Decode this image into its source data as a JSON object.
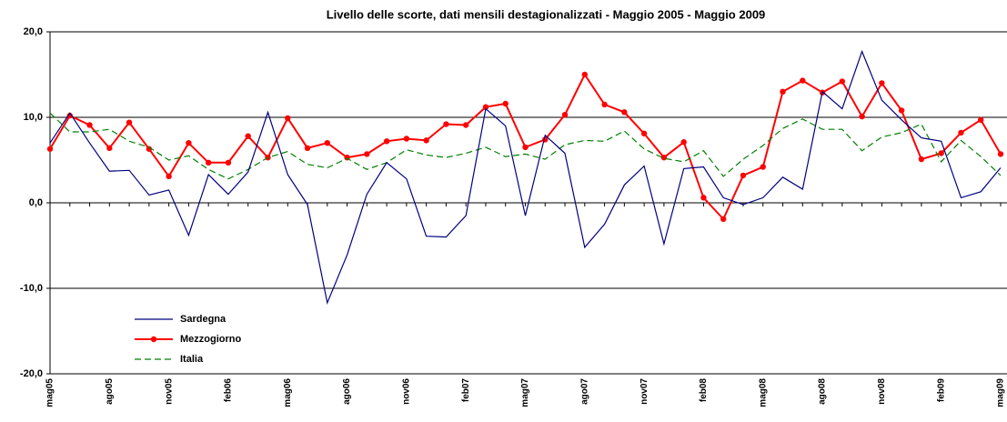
{
  "chart_data": {
    "type": "line",
    "title": "Livello delle scorte, dati mensili destagionalizzati - Maggio 2005 - Maggio 2009",
    "categories": [
      "mag05",
      null,
      null,
      "ago05",
      null,
      null,
      "nov05",
      null,
      null,
      "feb06",
      null,
      null,
      "mag06",
      null,
      null,
      "ago06",
      null,
      null,
      "nov06",
      null,
      null,
      "feb07",
      null,
      null,
      "mag07",
      null,
      null,
      "ago07",
      null,
      null,
      "nov07",
      null,
      null,
      "feb08",
      null,
      null,
      "mag08",
      null,
      null,
      "ago08",
      null,
      null,
      "nov08",
      null,
      null,
      "feb09",
      null,
      null,
      "mag09"
    ],
    "series": [
      {
        "name": "Sardegna",
        "color": "#000080",
        "values": [
          7.0,
          10.5,
          7.0,
          3.7,
          3.8,
          0.9,
          1.5,
          -3.8,
          3.3,
          1.0,
          3.6,
          10.6,
          3.3,
          -0.2,
          -11.7,
          -6.1,
          1.0,
          4.7,
          2.8,
          -3.9,
          -4.0,
          -1.5,
          11.0,
          9.0,
          -1.5,
          7.9,
          5.8,
          -5.2,
          -2.5,
          2.1,
          4.3,
          -4.8,
          4.0,
          4.2,
          0.6,
          -0.2,
          0.6,
          3.0,
          1.6,
          13.0,
          11.0,
          17.7,
          12.0,
          9.7,
          7.6,
          7.2,
          0.6,
          1.3,
          4.1
        ]
      },
      {
        "name": "Mezzogiorno",
        "color": "#ff0000",
        "marker": "circle",
        "values": [
          6.3,
          10.2,
          9.1,
          6.4,
          9.4,
          6.3,
          3.1,
          7.0,
          4.7,
          4.7,
          7.8,
          5.3,
          9.9,
          6.4,
          7.0,
          5.3,
          5.7,
          7.2,
          7.5,
          7.3,
          9.2,
          9.1,
          11.2,
          11.6,
          6.5,
          7.4,
          10.3,
          15.0,
          11.5,
          10.6,
          8.1,
          5.3,
          7.1,
          0.6,
          -1.9,
          3.2,
          4.2,
          13.0,
          14.3,
          12.9,
          14.2,
          10.1,
          14.0,
          10.8,
          5.1,
          5.8,
          8.2,
          9.7,
          5.7
        ]
      },
      {
        "name": "Italia",
        "color": "#008000",
        "dash": true,
        "values": [
          10.5,
          8.3,
          8.3,
          8.6,
          7.2,
          6.5,
          5.0,
          5.5,
          3.9,
          2.8,
          3.9,
          5.3,
          6.0,
          4.5,
          4.1,
          5.2,
          3.9,
          4.7,
          6.2,
          5.6,
          5.3,
          5.8,
          6.5,
          5.4,
          5.7,
          5.1,
          6.8,
          7.3,
          7.2,
          8.4,
          6.3,
          5.2,
          4.8,
          6.1,
          3.1,
          5.1,
          6.7,
          8.7,
          9.8,
          8.6,
          8.6,
          6.1,
          7.7,
          8.2,
          9.2,
          4.8,
          7.3,
          5.4,
          3.2
        ]
      }
    ],
    "ylim": [
      -20,
      20
    ],
    "yticks": [
      {
        "value": -20,
        "label": "-20,0"
      },
      {
        "value": -10,
        "label": "-10,0"
      },
      {
        "value": 0,
        "label": "0,0"
      },
      {
        "value": 10,
        "label": "10,0"
      },
      {
        "value": 20,
        "label": "20,0"
      }
    ],
    "grid": true,
    "legend": "lower left"
  }
}
